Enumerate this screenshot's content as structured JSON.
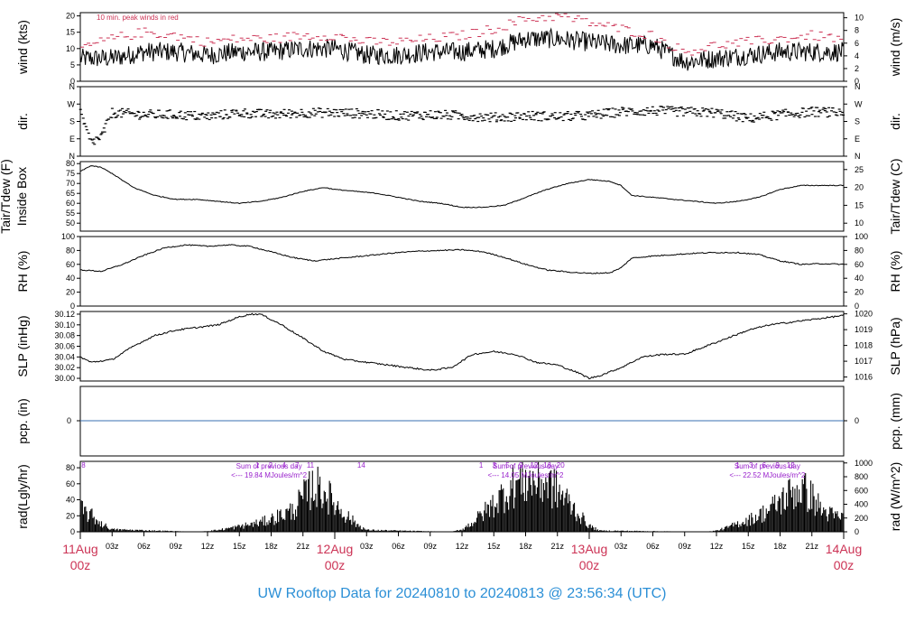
{
  "title": "UW Rooftop Data for 20240810  to  20240813 @ 23:56:34  (UTC)",
  "time_axis": {
    "hour_ticks": [
      "03z",
      "06z",
      "09z",
      "12z",
      "15z",
      "18z",
      "21z"
    ],
    "day_ticks": [
      {
        "date": "11Aug",
        "hour": "00z",
        "t": 0
      },
      {
        "date": "12Aug",
        "hour": "00z",
        "t": 24
      },
      {
        "date": "13Aug",
        "hour": "00z",
        "t": 48
      },
      {
        "date": "14Aug",
        "hour": "00z",
        "t": 72
      }
    ],
    "range_hours": [
      0,
      72
    ],
    "day_color": "#cc3355"
  },
  "colors": {
    "peak": "#cc3355",
    "purple": "#9922cc",
    "zero_line": "#3a6fb0",
    "title": "#2b8fd6"
  },
  "panels": {
    "wind": {
      "left_label": "wind (kts)",
      "right_label": "wind (m/s)",
      "left_ticks": [
        "0",
        "5",
        "10",
        "15",
        "20"
      ],
      "right_ticks": [
        "0",
        "2",
        "4",
        "6",
        "8",
        "10"
      ],
      "note": "10 min. peak winds in red",
      "ylim": [
        0,
        21
      ]
    },
    "dir": {
      "left_label": "dir.",
      "right_label": "dir.",
      "ticks": [
        "N",
        "E",
        "S",
        "W",
        "N"
      ]
    },
    "temp": {
      "left_label": "Tair/Tdew (F)",
      "left_label2": "Inside Box",
      "right_label": "Tair/Tdew (C)",
      "left_ticks": [
        "50",
        "55",
        "60",
        "65",
        "70",
        "75",
        "80"
      ],
      "right_ticks": [
        "10",
        "15",
        "20",
        "25"
      ],
      "ylim": [
        46,
        81
      ]
    },
    "rh": {
      "left_label": "RH (%)",
      "right_label": "RH (%)",
      "ticks": [
        "0",
        "20",
        "40",
        "60",
        "80",
        "100"
      ],
      "ylim": [
        0,
        100
      ]
    },
    "slp": {
      "left_label": "SLP (inHg)",
      "right_label": "SLP (hPa)",
      "left_ticks": [
        "30.00",
        "30.02",
        "30.04",
        "30.06",
        "30.08",
        "30.10",
        "30.12"
      ],
      "right_ticks": [
        "1016",
        "1017",
        "1018",
        "1019",
        "1020"
      ],
      "ylim": [
        29.995,
        30.125
      ]
    },
    "pcp": {
      "left_label": "pcp. (in)",
      "right_label": "pcp. (mm)",
      "left_tick": "0",
      "right_tick": "0"
    },
    "rad": {
      "left_label": "rad(Lgly/hr)",
      "right_label": "rad (W/m^2)",
      "left_ticks": [
        "0",
        "20",
        "40",
        "60",
        "80"
      ],
      "right_ticks": [
        "0",
        "200",
        "400",
        "600",
        "800",
        "1000"
      ],
      "ylim": [
        0,
        88
      ],
      "sum_label": "Sum of previous day",
      "sums": [
        {
          "text": "<--- 19.84 MJoules/m^2",
          "t": 19.5
        },
        {
          "text": "<--- 14.05 MJoules/m^2",
          "t": 43.7
        },
        {
          "text": "<--- 22.52 MJoules/m^2",
          "t": 66.5
        }
      ],
      "marker_label_sets": [
        {
          "t0": 0.3,
          "labels": [
            "8"
          ]
        },
        {
          "t0": 16.7,
          "labels": [
            "1",
            "2",
            "4",
            "7",
            "11"
          ]
        },
        {
          "t0": 26.5,
          "labels": [
            "14"
          ]
        },
        {
          "t0": 37.8,
          "labels": [
            "1",
            "3",
            "5",
            "9",
            "12",
            "16",
            "20"
          ]
        },
        {
          "t0": 62.0,
          "labels": [
            "1",
            "3",
            "6",
            "9",
            "12"
          ]
        }
      ]
    }
  },
  "chart_data": [
    {
      "type": "line",
      "name": "wind",
      "x_hours": [
        0,
        3,
        6,
        9,
        12,
        15,
        18,
        21,
        24,
        27,
        30,
        33,
        36,
        39,
        42,
        45,
        48,
        51,
        54,
        57,
        60,
        63,
        66,
        69,
        72
      ],
      "values_kts": [
        7,
        7,
        9,
        9,
        8,
        9,
        9,
        10,
        10,
        8,
        8,
        9,
        9,
        10,
        13,
        13,
        12,
        11,
        11,
        6,
        7,
        8,
        9,
        9,
        9
      ],
      "peak_kts": [
        10,
        13,
        15,
        14,
        12,
        13,
        13,
        14,
        14,
        12,
        12,
        13,
        14,
        16,
        19,
        20,
        18,
        16,
        14,
        9,
        11,
        12,
        13,
        14,
        13
      ],
      "ylim": [
        0,
        21
      ]
    },
    {
      "type": "scatter",
      "name": "dir",
      "x_hours": [
        0,
        1,
        2,
        3,
        6,
        9,
        12,
        15,
        18,
        21,
        24,
        27,
        30,
        33,
        36,
        39,
        42,
        45,
        48,
        51,
        54,
        57,
        60,
        63,
        66,
        69,
        72
      ],
      "values_deg": [
        220,
        70,
        100,
        225,
        215,
        215,
        205,
        225,
        215,
        225,
        225,
        220,
        210,
        215,
        210,
        200,
        210,
        205,
        210,
        230,
        235,
        230,
        225,
        195,
        215,
        230,
        225
      ],
      "ylim": [
        0,
        360
      ]
    },
    {
      "type": "line",
      "name": "temp",
      "x_hours": [
        0,
        1,
        2,
        3,
        5,
        7,
        9,
        11,
        13,
        15,
        17,
        19,
        21,
        23,
        24,
        26,
        28,
        30,
        32,
        34,
        36,
        38,
        40,
        42,
        44,
        46,
        48,
        50,
        51,
        52,
        54,
        56,
        58,
        60,
        62,
        64,
        66,
        68,
        70,
        72
      ],
      "values_f": [
        76,
        79,
        78,
        75,
        68,
        64,
        62,
        62,
        61,
        60,
        61,
        63,
        66,
        68,
        67,
        66,
        65,
        63,
        61,
        60,
        58,
        58,
        59,
        63,
        67,
        70,
        72,
        71,
        69,
        64,
        63,
        62,
        61,
        60,
        61,
        63,
        67,
        69,
        69,
        69
      ],
      "ylim": [
        46,
        81
      ]
    },
    {
      "type": "line",
      "name": "rh",
      "x_hours": [
        0,
        2,
        4,
        6,
        8,
        10,
        12,
        14,
        16,
        18,
        20,
        22,
        24,
        26,
        28,
        30,
        32,
        34,
        36,
        38,
        40,
        42,
        44,
        46,
        48,
        50,
        51,
        52,
        54,
        56,
        58,
        60,
        62,
        64,
        66,
        68,
        70,
        72
      ],
      "values_pct": [
        52,
        50,
        60,
        73,
        84,
        88,
        86,
        88,
        86,
        78,
        70,
        65,
        68,
        71,
        74,
        77,
        79,
        80,
        81,
        78,
        70,
        60,
        52,
        49,
        47,
        48,
        55,
        69,
        72,
        74,
        76,
        77,
        77,
        74,
        65,
        60,
        61,
        60
      ],
      "ylim": [
        0,
        100
      ]
    },
    {
      "type": "line",
      "name": "slp",
      "x_hours": [
        0,
        1,
        3,
        5,
        7,
        9,
        11,
        13,
        15,
        16,
        17,
        19,
        21,
        23,
        25,
        27,
        29,
        31,
        33,
        35,
        37,
        39,
        41,
        43,
        45,
        47,
        48,
        49,
        51,
        53,
        55,
        57,
        59,
        61,
        63,
        65,
        67,
        69,
        71,
        72
      ],
      "values_inhg": [
        30.04,
        30.03,
        30.035,
        30.06,
        30.08,
        30.09,
        30.095,
        30.1,
        30.115,
        30.12,
        30.12,
        30.1,
        30.075,
        30.05,
        30.035,
        30.03,
        30.025,
        30.02,
        30.015,
        30.02,
        30.045,
        30.05,
        30.045,
        30.03,
        30.025,
        30.01,
        30.0,
        30.005,
        30.02,
        30.04,
        30.045,
        30.045,
        30.06,
        30.075,
        30.09,
        30.1,
        30.105,
        30.11,
        30.115,
        30.118
      ],
      "ylim": [
        29.995,
        30.125
      ]
    },
    {
      "type": "line",
      "name": "pcp",
      "x_hours": [
        0,
        72
      ],
      "values_in": [
        0,
        0
      ]
    },
    {
      "type": "area",
      "name": "rad",
      "x_hours": [
        0,
        1,
        2,
        3,
        11,
        13,
        15,
        17,
        18,
        19,
        20,
        21,
        22,
        23,
        24,
        25,
        26,
        27,
        35,
        36,
        37,
        38,
        39,
        40,
        41,
        42,
        43,
        44,
        45,
        46,
        47,
        48,
        49,
        59,
        60,
        61,
        62,
        63,
        64,
        65,
        66,
        67,
        68,
        69,
        70,
        71,
        72
      ],
      "values_lgly_hr": [
        38,
        28,
        14,
        4,
        0,
        3,
        9,
        16,
        22,
        29,
        36,
        58,
        79,
        70,
        48,
        30,
        14,
        3,
        0,
        4,
        16,
        32,
        48,
        66,
        82,
        88,
        86,
        84,
        70,
        52,
        30,
        10,
        2,
        0,
        2,
        7,
        14,
        20,
        28,
        38,
        52,
        66,
        74,
        60,
        36,
        28,
        24
      ],
      "ylim": [
        0,
        88
      ]
    }
  ]
}
